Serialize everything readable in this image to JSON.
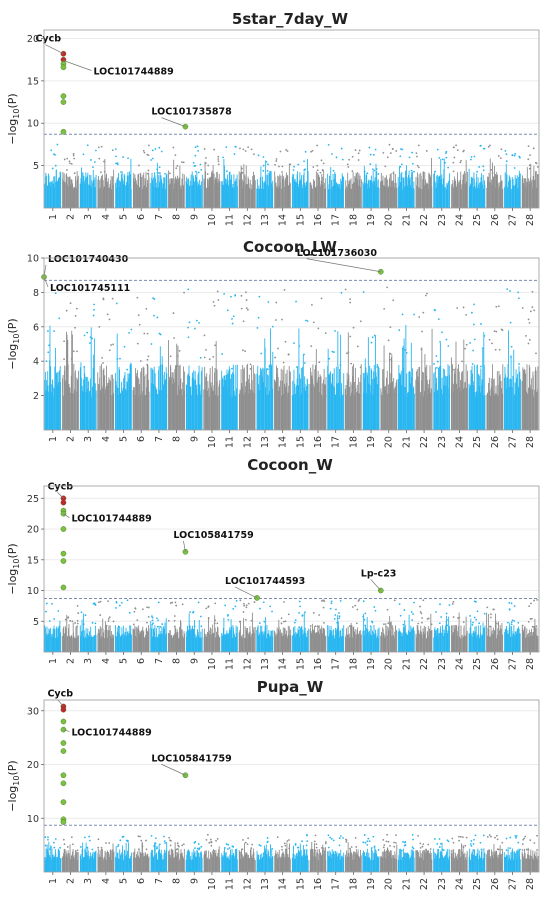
{
  "colors": {
    "odd_chrom": "#29b6f0",
    "even_chrom": "#8f8f8f",
    "threshold": "#7f8bb5",
    "hit_green": "#7cc242",
    "hit_red": "#c6262e",
    "grid": "#ececec",
    "frame": "#9a9a9a"
  },
  "chart_data": [
    {
      "type": "scatter",
      "subtype": "manhattan",
      "title": "5star_7day_W",
      "ylabel": "-log10(P)",
      "ylim": [
        0,
        21
      ],
      "yticks": [
        5,
        10,
        15,
        20
      ],
      "chromosomes": [
        "1",
        "2",
        "3",
        "4",
        "5",
        "6",
        "7",
        "8",
        "9",
        "10",
        "11",
        "12",
        "13",
        "14",
        "15",
        "16",
        "17",
        "18",
        "19",
        "20",
        "21",
        "22",
        "23",
        "24",
        "25",
        "26",
        "27",
        "28"
      ],
      "threshold": 8.7,
      "background": {
        "typical_max": 4,
        "peak_max": 7.5
      },
      "hits": [
        {
          "chrom": 2,
          "pos": 0.1,
          "y": 18.2,
          "color": "red"
        },
        {
          "chrom": 2,
          "pos": 0.1,
          "y": 17.5,
          "color": "red"
        },
        {
          "chrom": 2,
          "pos": 0.1,
          "y": 17.0,
          "color": "green"
        },
        {
          "chrom": 2,
          "pos": 0.1,
          "y": 16.6,
          "color": "green"
        },
        {
          "chrom": 2,
          "pos": 0.1,
          "y": 13.2,
          "color": "green"
        },
        {
          "chrom": 2,
          "pos": 0.1,
          "y": 12.5,
          "color": "green"
        },
        {
          "chrom": 2,
          "pos": 0.1,
          "y": 9.0,
          "color": "green"
        },
        {
          "chrom": 9,
          "pos": 0.0,
          "y": 9.6,
          "color": "green"
        }
      ],
      "annotations": [
        {
          "text": "Cycb",
          "chrom": 2,
          "pos": 0.1,
          "y": 18.2
        },
        {
          "text": "LOC101744889",
          "chrom": 2,
          "pos": 0.1,
          "y": 17.4
        },
        {
          "text": "LOC101735878",
          "chrom": 9,
          "pos": 0.0,
          "y": 9.6
        }
      ]
    },
    {
      "type": "scatter",
      "subtype": "manhattan",
      "title": "Cocoon_LW",
      "ylabel": "-log10(P)",
      "ylim": [
        0,
        10
      ],
      "yticks": [
        2,
        4,
        6,
        8,
        10
      ],
      "chromosomes": [
        "1",
        "2",
        "3",
        "4",
        "5",
        "6",
        "7",
        "8",
        "9",
        "10",
        "11",
        "12",
        "13",
        "14",
        "15",
        "16",
        "17",
        "18",
        "19",
        "20",
        "21",
        "22",
        "23",
        "24",
        "25",
        "26",
        "27",
        "28"
      ],
      "threshold": 8.7,
      "background": {
        "typical_max": 3.5,
        "peak_max": 8.3
      },
      "hits": [
        {
          "chrom": 1,
          "pos": 0.0,
          "y": 8.9,
          "color": "green"
        },
        {
          "chrom": 20,
          "pos": 0.05,
          "y": 9.2,
          "color": "green"
        }
      ],
      "annotations": [
        {
          "text": "LOC101740430",
          "chrom": 1,
          "pos": 0.0,
          "y": 8.9
        },
        {
          "text": "LOC101745111",
          "chrom": 1,
          "pos": 0.0,
          "y": 8.9
        },
        {
          "text": "LOC101736030",
          "chrom": 20,
          "pos": 0.05,
          "y": 9.2
        }
      ]
    },
    {
      "type": "scatter",
      "subtype": "manhattan",
      "title": "Cocoon_W",
      "ylabel": "-log10(P)",
      "ylim": [
        0,
        27
      ],
      "yticks": [
        5,
        10,
        15,
        20,
        25
      ],
      "chromosomes": [
        "1",
        "2",
        "3",
        "4",
        "5",
        "6",
        "7",
        "8",
        "9",
        "10",
        "11",
        "12",
        "13",
        "14",
        "15",
        "16",
        "17",
        "18",
        "19",
        "20",
        "21",
        "22",
        "23",
        "24",
        "25",
        "26",
        "27",
        "28"
      ],
      "threshold": 8.7,
      "background": {
        "typical_max": 4,
        "peak_max": 8.5
      },
      "hits": [
        {
          "chrom": 2,
          "pos": 0.1,
          "y": 25.0,
          "color": "red"
        },
        {
          "chrom": 2,
          "pos": 0.1,
          "y": 24.3,
          "color": "red"
        },
        {
          "chrom": 2,
          "pos": 0.1,
          "y": 23.0,
          "color": "green"
        },
        {
          "chrom": 2,
          "pos": 0.1,
          "y": 22.5,
          "color": "green"
        },
        {
          "chrom": 2,
          "pos": 0.1,
          "y": 20.0,
          "color": "green"
        },
        {
          "chrom": 2,
          "pos": 0.1,
          "y": 16.0,
          "color": "green"
        },
        {
          "chrom": 2,
          "pos": 0.1,
          "y": 14.8,
          "color": "green"
        },
        {
          "chrom": 2,
          "pos": 0.1,
          "y": 10.5,
          "color": "green"
        },
        {
          "chrom": 9,
          "pos": 0.0,
          "y": 16.3,
          "color": "green"
        },
        {
          "chrom": 13,
          "pos": 0.05,
          "y": 8.8,
          "color": "green"
        },
        {
          "chrom": 20,
          "pos": 0.05,
          "y": 10.0,
          "color": "green"
        }
      ],
      "annotations": [
        {
          "text": "Cycb",
          "chrom": 2,
          "pos": 0.1,
          "y": 25.0
        },
        {
          "text": "LOC101744889",
          "chrom": 2,
          "pos": 0.1,
          "y": 22.5
        },
        {
          "text": "LOC105841759",
          "chrom": 9,
          "pos": 0.0,
          "y": 16.3
        },
        {
          "text": "LOC101744593",
          "chrom": 13,
          "pos": 0.05,
          "y": 8.8
        },
        {
          "text": "Lp-c23",
          "chrom": 20,
          "pos": 0.05,
          "y": 10.0
        }
      ]
    },
    {
      "type": "scatter",
      "subtype": "manhattan",
      "title": "Pupa_W",
      "ylabel": "-log10(P)",
      "ylim": [
        0,
        32
      ],
      "yticks": [
        10,
        20,
        30
      ],
      "chromosomes": [
        "1",
        "2",
        "3",
        "4",
        "5",
        "6",
        "7",
        "8",
        "9",
        "10",
        "11",
        "12",
        "13",
        "14",
        "15",
        "16",
        "17",
        "18",
        "19",
        "20",
        "21",
        "22",
        "23",
        "24",
        "25",
        "26",
        "27",
        "28"
      ],
      "threshold": 8.7,
      "background": {
        "typical_max": 4,
        "peak_max": 7
      },
      "hits": [
        {
          "chrom": 2,
          "pos": 0.1,
          "y": 30.8,
          "color": "red"
        },
        {
          "chrom": 2,
          "pos": 0.1,
          "y": 30.2,
          "color": "red"
        },
        {
          "chrom": 2,
          "pos": 0.1,
          "y": 28.0,
          "color": "green"
        },
        {
          "chrom": 2,
          "pos": 0.1,
          "y": 26.5,
          "color": "green"
        },
        {
          "chrom": 2,
          "pos": 0.1,
          "y": 24.0,
          "color": "green"
        },
        {
          "chrom": 2,
          "pos": 0.1,
          "y": 22.5,
          "color": "green"
        },
        {
          "chrom": 2,
          "pos": 0.1,
          "y": 18.0,
          "color": "green"
        },
        {
          "chrom": 2,
          "pos": 0.1,
          "y": 16.5,
          "color": "green"
        },
        {
          "chrom": 2,
          "pos": 0.1,
          "y": 13.0,
          "color": "green"
        },
        {
          "chrom": 2,
          "pos": 0.1,
          "y": 9.8,
          "color": "green"
        },
        {
          "chrom": 2,
          "pos": 0.1,
          "y": 9.3,
          "color": "green"
        },
        {
          "chrom": 9,
          "pos": 0.0,
          "y": 18.0,
          "color": "green"
        }
      ],
      "annotations": [
        {
          "text": "Cycb",
          "chrom": 2,
          "pos": 0.1,
          "y": 30.8
        },
        {
          "text": "LOC101744889",
          "chrom": 2,
          "pos": 0.1,
          "y": 26.5
        },
        {
          "text": "LOC105841759",
          "chrom": 9,
          "pos": 0.0,
          "y": 18.0
        }
      ]
    }
  ]
}
